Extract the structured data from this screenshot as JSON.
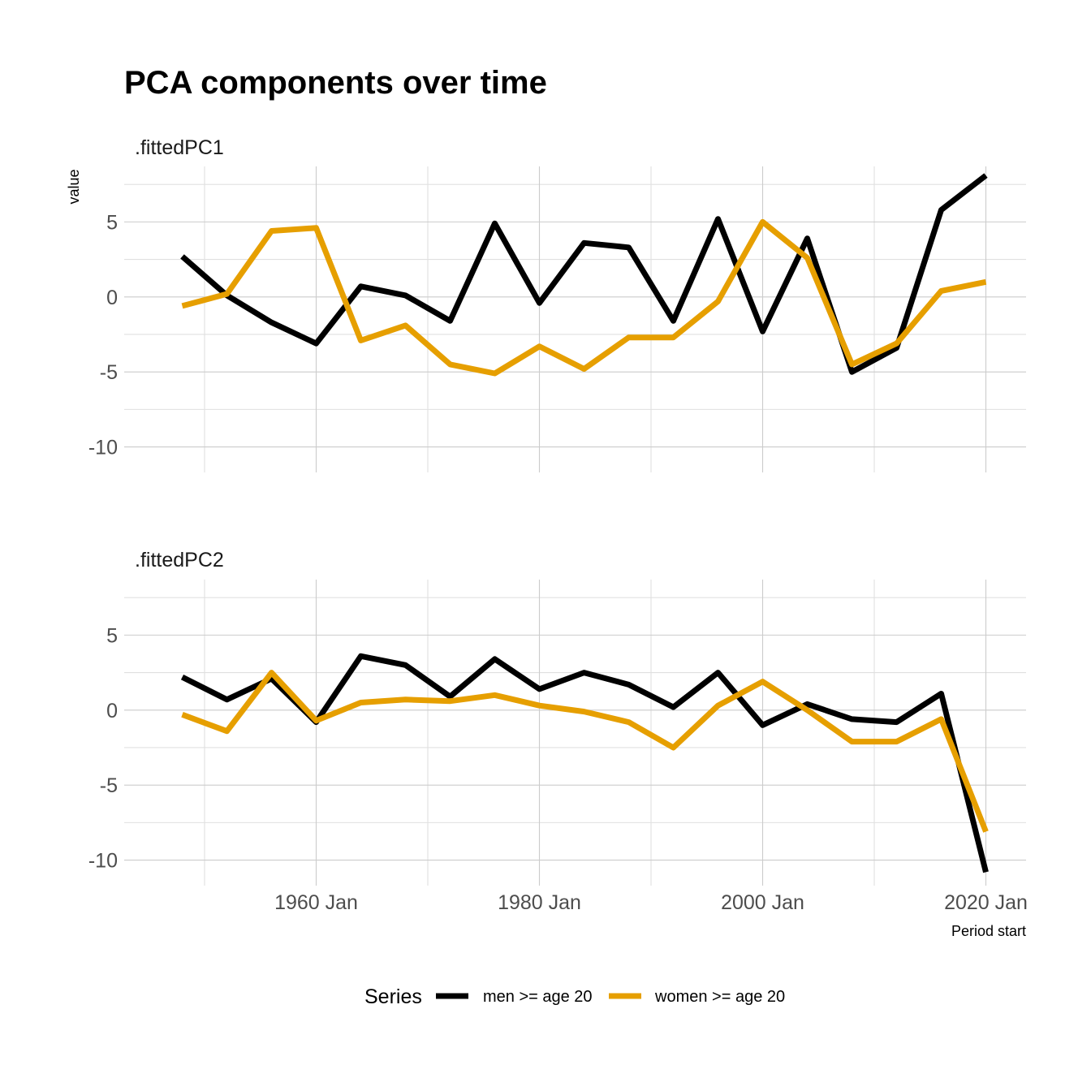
{
  "chart_data": {
    "type": "line",
    "title": "PCA components over time",
    "ylabel": "value",
    "xlabel": "Period start",
    "x": [
      1948,
      1952,
      1956,
      1960,
      1964,
      1968,
      1972,
      1976,
      1980,
      1984,
      1988,
      1992,
      1996,
      2000,
      2004,
      2008,
      2012,
      2016,
      2020
    ],
    "xlim": [
      1942.8,
      2023.6
    ],
    "x_ticks": [
      1960,
      1980,
      2000,
      2020
    ],
    "x_tick_labels": [
      "1960 Jan",
      "1980 Jan",
      "2000 Jan",
      "2020 Jan"
    ],
    "ylim": [
      -11.7,
      8.7
    ],
    "y_ticks": [
      5,
      0,
      -5,
      -10
    ],
    "y_tick_labels": [
      "5",
      "0",
      "-5",
      "-10"
    ],
    "grid": true,
    "legend": {
      "title": "Series",
      "placement": "bottom",
      "entries": [
        "men >= age 20",
        "women >= age 20"
      ]
    },
    "series_colors": [
      "#000000",
      "#E69F00"
    ],
    "panels": [
      {
        "label": ".fittedPC1",
        "series": [
          {
            "name": "men >= age 20",
            "values": [
              2.7,
              0.1,
              -1.7,
              -3.1,
              0.7,
              0.1,
              -1.6,
              4.9,
              -0.4,
              3.6,
              3.3,
              -1.6,
              5.2,
              -2.3,
              3.9,
              -5.0,
              -3.4,
              5.8,
              8.1
            ]
          },
          {
            "name": "women >= age 20",
            "values": [
              -0.6,
              0.2,
              4.4,
              4.6,
              -2.9,
              -1.9,
              -4.5,
              -5.1,
              -3.3,
              -4.8,
              -2.7,
              -2.7,
              -0.3,
              5.0,
              2.6,
              -4.5,
              -3.1,
              0.4,
              1.0
            ]
          }
        ]
      },
      {
        "label": ".fittedPC2",
        "series": [
          {
            "name": "men >= age 20",
            "values": [
              2.2,
              0.7,
              2.1,
              -0.8,
              3.6,
              3.0,
              0.9,
              3.4,
              1.4,
              2.5,
              1.7,
              0.2,
              2.5,
              -1.0,
              0.4,
              -0.6,
              -0.8,
              1.1,
              -10.8
            ]
          },
          {
            "name": "women >= age 20",
            "values": [
              -0.3,
              -1.4,
              2.5,
              -0.7,
              0.5,
              0.7,
              0.6,
              1.0,
              0.3,
              -0.1,
              -0.8,
              -2.5,
              0.3,
              1.9,
              0.0,
              -2.1,
              -2.1,
              -0.6,
              -8.1
            ]
          }
        ]
      }
    ]
  }
}
